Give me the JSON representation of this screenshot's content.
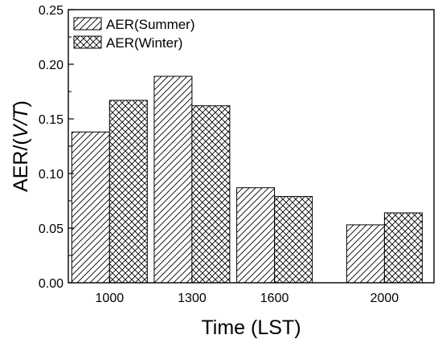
{
  "chart_data": {
    "type": "bar",
    "categories": [
      "1000",
      "1300",
      "1600",
      "2000"
    ],
    "category_x": [
      1000,
      1300,
      1600,
      2000
    ],
    "series": [
      {
        "name": "AER(Summer)",
        "values": [
          0.138,
          0.189,
          0.087,
          0.053
        ],
        "pattern": "diagonal-hatch"
      },
      {
        "name": "AER(Winter)",
        "values": [
          0.167,
          0.162,
          0.079,
          0.064
        ],
        "pattern": "cross-hatch"
      }
    ],
    "title": "",
    "xlabel": "Time (LST)",
    "ylabel_prefix": "AER/(",
    "ylabel_italic": "V/T",
    "ylabel_suffix": ")",
    "ylim": [
      0,
      0.25
    ],
    "yticks": [
      "0.00",
      "0.05",
      "0.10",
      "0.15",
      "0.20",
      "0.25"
    ],
    "grid": false,
    "legend_position": "top-left"
  }
}
